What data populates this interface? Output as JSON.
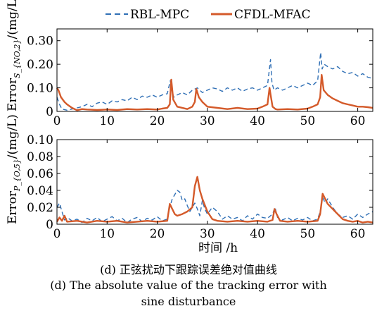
{
  "legend": {
    "series": [
      {
        "name": "RBL-MPC",
        "color": "#2f6fb5",
        "dash": true
      },
      {
        "name": "CFDL-MFAC",
        "color": "#d45a2a",
        "dash": false
      }
    ]
  },
  "xlabel": "时间 /h",
  "caption": {
    "line1": "(d) 正弦扰动下跟踪误差绝对值曲线",
    "line2": "(d) The absolute value of the tracking error with",
    "line3": "sine disturbance"
  },
  "chart_data": [
    {
      "type": "line",
      "ylabel_main": "Error",
      "ylabel_sub": "S_{NO,2}",
      "ylabel_unit": "/(mg/L)",
      "xlim": [
        0,
        63
      ],
      "ylim": [
        0,
        0.35
      ],
      "xticks": [
        0,
        10,
        20,
        30,
        40,
        50,
        60
      ],
      "yticks": [
        0,
        0.1,
        0.2,
        0.3
      ],
      "ytick_labels": [
        "0",
        "0.10",
        "0.20",
        "0.30"
      ],
      "grid": false,
      "series": [
        {
          "name": "RBL-MPC",
          "x": [
            0,
            0.5,
            1,
            2,
            3,
            4,
            5,
            6,
            7,
            8,
            9,
            10,
            11,
            12,
            13,
            14,
            15,
            16,
            17,
            18,
            19,
            20,
            21,
            22,
            22.6,
            22.9,
            23.3,
            24,
            25,
            26,
            27,
            28,
            29,
            30,
            31,
            32,
            33,
            34,
            35,
            36,
            37,
            38,
            39,
            40,
            41,
            42,
            42.6,
            42.9,
            43.3,
            44,
            45,
            46,
            47,
            48,
            49,
            50,
            51,
            52,
            52.6,
            52.9,
            53.3,
            54,
            55,
            56,
            57,
            58,
            59,
            60,
            61,
            62,
            63
          ],
          "values": [
            0.06,
            0.03,
            0.01,
            0.005,
            0.01,
            0.015,
            0.02,
            0.03,
            0.02,
            0.035,
            0.04,
            0.03,
            0.045,
            0.04,
            0.05,
            0.045,
            0.06,
            0.05,
            0.065,
            0.06,
            0.07,
            0.06,
            0.07,
            0.075,
            0.13,
            0.09,
            0.06,
            0.07,
            0.08,
            0.07,
            0.09,
            0.1,
            0.08,
            0.09,
            0.1,
            0.095,
            0.085,
            0.1,
            0.09,
            0.1,
            0.085,
            0.095,
            0.1,
            0.09,
            0.1,
            0.11,
            0.22,
            0.12,
            0.09,
            0.1,
            0.09,
            0.1,
            0.11,
            0.1,
            0.11,
            0.12,
            0.11,
            0.13,
            0.25,
            0.18,
            0.2,
            0.19,
            0.18,
            0.19,
            0.17,
            0.16,
            0.165,
            0.15,
            0.16,
            0.145,
            0.14
          ]
        },
        {
          "name": "CFDL-MFAC",
          "x": [
            0,
            0.3,
            0.8,
            1.5,
            2,
            3,
            4,
            5,
            6,
            8,
            10,
            12,
            14,
            16,
            18,
            20,
            21,
            22,
            22.5,
            22.8,
            23.2,
            24,
            26,
            27,
            27.5,
            27.8,
            28.3,
            29,
            30,
            32,
            34,
            36,
            38,
            40,
            41,
            42,
            42.4,
            42.7,
            43,
            43.6,
            44,
            46,
            48,
            50,
            51,
            52,
            52.5,
            52.8,
            53.2,
            54,
            55,
            56,
            57,
            58,
            59,
            60,
            61,
            62,
            63
          ],
          "values": [
            0.1,
            0.09,
            0.06,
            0.04,
            0.03,
            0.015,
            0.005,
            0.01,
            0.008,
            0.006,
            0.008,
            0.006,
            0.01,
            0.008,
            0.01,
            0.008,
            0.012,
            0.015,
            0.03,
            0.135,
            0.05,
            0.02,
            0.01,
            0.02,
            0.04,
            0.095,
            0.06,
            0.04,
            0.02,
            0.015,
            0.01,
            0.015,
            0.01,
            0.012,
            0.02,
            0.03,
            0.1,
            0.06,
            0.02,
            0.01,
            0.008,
            0.01,
            0.008,
            0.012,
            0.02,
            0.03,
            0.06,
            0.155,
            0.09,
            0.07,
            0.055,
            0.045,
            0.035,
            0.03,
            0.025,
            0.02,
            0.02,
            0.018,
            0.015
          ]
        }
      ]
    },
    {
      "type": "line",
      "ylabel_main": "Error",
      "ylabel_sub": "P_{O,5}",
      "ylabel_unit": "/(mg/L)",
      "xlim": [
        0,
        63
      ],
      "ylim": [
        0,
        0.1
      ],
      "xticks": [
        0,
        10,
        20,
        30,
        40,
        50,
        60
      ],
      "yticks": [
        0,
        0.02,
        0.04,
        0.06,
        0.08,
        0.1
      ],
      "ytick_labels": [
        "0",
        "0.02",
        "0.04",
        "0.06",
        "0.08",
        "0.10"
      ],
      "grid": false,
      "series": [
        {
          "name": "RBL-MPC",
          "x": [
            0,
            0.5,
            1,
            1.5,
            2,
            3,
            4,
            5,
            6,
            7,
            8,
            9,
            10,
            11,
            12,
            13,
            14,
            15,
            16,
            17,
            18,
            19,
            20,
            21,
            22,
            22.5,
            23,
            23.5,
            24,
            24.5,
            25,
            25.5,
            26,
            26.5,
            27,
            27.5,
            28,
            28.5,
            29,
            29.5,
            30,
            31,
            32,
            33,
            34,
            35,
            36,
            37,
            38,
            39,
            40,
            41,
            42,
            43,
            43.5,
            44,
            45,
            46,
            47,
            48,
            49,
            50,
            51,
            52,
            52.5,
            53,
            53.5,
            54,
            55,
            56,
            57,
            58,
            59,
            60,
            61,
            62,
            63
          ],
          "values": [
            0.02,
            0.025,
            0.015,
            0.005,
            0.008,
            0.004,
            0.006,
            0.002,
            0.007,
            0.004,
            0.008,
            0.003,
            0.006,
            0.009,
            0.004,
            0.007,
            0.002,
            0.006,
            0.008,
            0.003,
            0.007,
            0.005,
            0.009,
            0.004,
            0.006,
            0.02,
            0.03,
            0.035,
            0.04,
            0.038,
            0.028,
            0.03,
            0.022,
            0.015,
            0.02,
            0.025,
            0.018,
            0.01,
            0.028,
            0.018,
            0.012,
            0.02,
            0.015,
            0.006,
            0.01,
            0.006,
            0.008,
            0.004,
            0.01,
            0.006,
            0.012,
            0.008,
            0.007,
            0.012,
            0.02,
            0.008,
            0.005,
            0.008,
            0.004,
            0.007,
            0.005,
            0.008,
            0.004,
            0.006,
            0.015,
            0.032,
            0.025,
            0.03,
            0.02,
            0.012,
            0.008,
            0.01,
            0.006,
            0.012,
            0.008,
            0.012,
            0.015
          ]
        },
        {
          "name": "CFDL-MFAC",
          "x": [
            0,
            0.5,
            1,
            1.5,
            2,
            4,
            6,
            8,
            10,
            12,
            14,
            16,
            18,
            20,
            22,
            22.5,
            23,
            23.5,
            24,
            25,
            26,
            27,
            27.5,
            28,
            28.5,
            29,
            30,
            31,
            32,
            34,
            36,
            38,
            40,
            42,
            43,
            43.4,
            43.8,
            44.5,
            46,
            48,
            50,
            52,
            52.5,
            53,
            53.5,
            54,
            55,
            56,
            57,
            58,
            59,
            60,
            61,
            62,
            63
          ],
          "values": [
            0.003,
            0.008,
            0.004,
            0.01,
            0.003,
            0.004,
            0.002,
            0.004,
            0.003,
            0.004,
            0.002,
            0.003,
            0.004,
            0.003,
            0.004,
            0.024,
            0.018,
            0.012,
            0.01,
            0.012,
            0.015,
            0.02,
            0.045,
            0.056,
            0.04,
            0.03,
            0.015,
            0.006,
            0.004,
            0.003,
            0.004,
            0.003,
            0.004,
            0.003,
            0.005,
            0.018,
            0.012,
            0.004,
            0.003,
            0.004,
            0.003,
            0.004,
            0.012,
            0.036,
            0.03,
            0.024,
            0.018,
            0.012,
            0.006,
            0.004,
            0.003,
            0.004,
            0.002,
            0.003,
            0.002
          ]
        }
      ]
    }
  ]
}
